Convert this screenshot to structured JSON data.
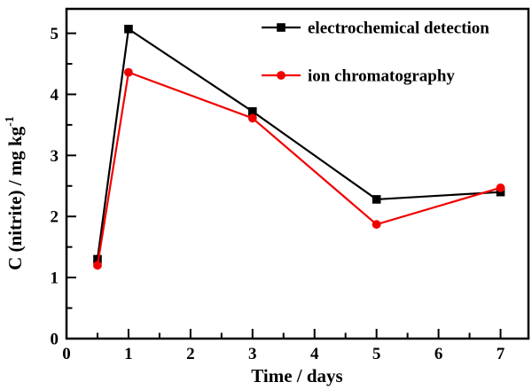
{
  "figure": {
    "background": "#ffffff",
    "frame_color": "#000000"
  },
  "chart_data": {
    "type": "line",
    "title": "",
    "xlabel": "Time / days",
    "ylabel": "C (nitrite) / mg kg⁻¹",
    "ylabel_base": "C (nitrite) / mg kg",
    "ylabel_exponent": "-1",
    "xlim": [
      0,
      7.45
    ],
    "ylim": [
      0,
      5.4
    ],
    "x_major_ticks": [
      0,
      1,
      2,
      3,
      4,
      5,
      6,
      7
    ],
    "y_major_ticks": [
      0,
      1,
      2,
      3,
      4,
      5
    ],
    "minor_tick_step": 0.5,
    "grid": false,
    "legend_position": "upper right",
    "x": [
      0.5,
      1,
      3,
      5,
      7
    ],
    "series": [
      {
        "name": "electrochemical detection",
        "color": "#000000",
        "marker": "square",
        "values": [
          1.3,
          5.07,
          3.72,
          2.28,
          2.4
        ]
      },
      {
        "name": "ion chromatography",
        "color": "#f20000",
        "marker": "circle",
        "values": [
          1.2,
          4.36,
          3.61,
          1.87,
          2.47
        ]
      }
    ]
  }
}
